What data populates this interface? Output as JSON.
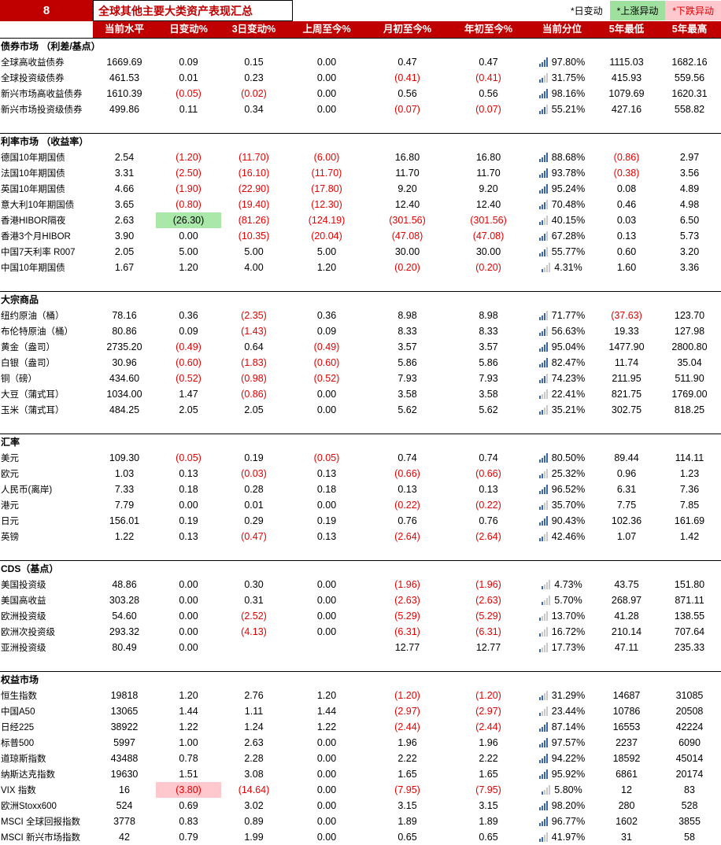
{
  "page": {
    "index_number": "8",
    "title": "全球其他主要大类资产表现汇总",
    "legend": [
      {
        "label": "*日变动",
        "style": "plain"
      },
      {
        "label": "*上涨异动",
        "style": "up"
      },
      {
        "label": "*下跌异动",
        "style": "down"
      }
    ]
  },
  "colors": {
    "header_bg": "#C00000",
    "negative_text": "#E60000",
    "up_highlight_bg": "#A9E8A9",
    "down_highlight_bg": "#FFC7CE",
    "percentile_bar_filled": "#3A66A7",
    "percentile_bar_empty": "#C9C9C9"
  },
  "icons": {
    "percentile_icon": "mini-bar-chart"
  },
  "table": {
    "columns": [
      "当前水平",
      "日变动%",
      "3日变动%",
      "上周至今%",
      "月初至今%",
      "年初至今%",
      "当前分位",
      "5年最低",
      "5年最高"
    ],
    "sections": [
      {
        "name": "债券市场 （利差/基点）",
        "rows": [
          {
            "label": "全球高收益债券",
            "cells": [
              "1669.69",
              "0.09",
              "0.15",
              "0.00",
              "0.47",
              "0.47",
              "97.80%",
              "1115.03",
              "1682.16"
            ]
          },
          {
            "label": "全球投资级债券",
            "cells": [
              "461.53",
              "0.01",
              "0.23",
              "0.00",
              "(0.41)",
              "(0.41)",
              "31.75%",
              "415.93",
              "559.56"
            ]
          },
          {
            "label": "新兴市场高收益债券",
            "cells": [
              "1610.39",
              "(0.05)",
              "(0.02)",
              "0.00",
              "0.56",
              "0.56",
              "98.16%",
              "1079.69",
              "1620.31"
            ]
          },
          {
            "label": "新兴市场投资级债券",
            "cells": [
              "499.86",
              "0.11",
              "0.34",
              "0.00",
              "(0.07)",
              "(0.07)",
              "55.21%",
              "427.16",
              "558.82"
            ]
          }
        ]
      },
      {
        "name": "利率市场 （收益率）",
        "rows": [
          {
            "label": "德国10年期国债",
            "cells": [
              "2.54",
              "(1.20)",
              "(11.70)",
              "(6.00)",
              "16.80",
              "16.80",
              "88.68%",
              "(0.86)",
              "2.97"
            ]
          },
          {
            "label": "法国10年期国债",
            "cells": [
              "3.31",
              "(2.50)",
              "(16.10)",
              "(11.70)",
              "11.70",
              "11.70",
              "93.78%",
              "(0.38)",
              "3.56"
            ]
          },
          {
            "label": "英国10年期国债",
            "cells": [
              "4.66",
              "(1.90)",
              "(22.90)",
              "(17.80)",
              "9.20",
              "9.20",
              "95.24%",
              "0.08",
              "4.89"
            ]
          },
          {
            "label": "意大利10年期国债",
            "cells": [
              "3.65",
              "(0.80)",
              "(19.40)",
              "(12.30)",
              "12.40",
              "12.40",
              "70.48%",
              "0.46",
              "4.98"
            ]
          },
          {
            "label": "香港HIBOR隔夜",
            "cells": [
              "2.63",
              "(26.30)",
              "(81.26)",
              "(124.19)",
              "(301.56)",
              "(301.56)",
              "40.15%",
              "0.03",
              "6.50"
            ],
            "hl": {
              "1": "up"
            }
          },
          {
            "label": "香港3个月HIBOR",
            "cells": [
              "3.90",
              "0.00",
              "(10.35)",
              "(20.04)",
              "(47.08)",
              "(47.08)",
              "67.28%",
              "0.13",
              "5.73"
            ]
          },
          {
            "label": "中国7天利率 R007",
            "cells": [
              "2.05",
              "5.00",
              "5.00",
              "5.00",
              "30.00",
              "30.00",
              "55.77%",
              "0.60",
              "3.20"
            ]
          },
          {
            "label": "中国10年期国债",
            "cells": [
              "1.67",
              "1.20",
              "4.00",
              "1.20",
              "(0.20)",
              "(0.20)",
              "4.31%",
              "1.60",
              "3.36"
            ]
          }
        ]
      },
      {
        "name": "大宗商品",
        "rows": [
          {
            "label": "纽约原油（桶）",
            "cells": [
              "78.16",
              "0.36",
              "(2.35)",
              "0.36",
              "8.98",
              "8.98",
              "71.77%",
              "(37.63)",
              "123.70"
            ]
          },
          {
            "label": "布伦特原油（桶）",
            "cells": [
              "80.86",
              "0.09",
              "(1.43)",
              "0.09",
              "8.33",
              "8.33",
              "56.63%",
              "19.33",
              "127.98"
            ]
          },
          {
            "label": "黄金（盎司）",
            "cells": [
              "2735.20",
              "(0.49)",
              "0.64",
              "(0.49)",
              "3.57",
              "3.57",
              "95.04%",
              "1477.90",
              "2800.80"
            ]
          },
          {
            "label": "白银（盎司）",
            "cells": [
              "30.96",
              "(0.60)",
              "(1.83)",
              "(0.60)",
              "5.86",
              "5.86",
              "82.47%",
              "11.74",
              "35.04"
            ]
          },
          {
            "label": "铜（磅）",
            "cells": [
              "434.60",
              "(0.52)",
              "(0.98)",
              "(0.52)",
              "7.93",
              "7.93",
              "74.23%",
              "211.95",
              "511.90"
            ]
          },
          {
            "label": "大豆（蒲式耳）",
            "cells": [
              "1034.00",
              "1.47",
              "(0.86)",
              "0.00",
              "3.58",
              "3.58",
              "22.41%",
              "821.75",
              "1769.00"
            ]
          },
          {
            "label": "玉米（蒲式耳）",
            "cells": [
              "484.25",
              "2.05",
              "2.05",
              "0.00",
              "5.62",
              "5.62",
              "35.21%",
              "302.75",
              "818.25"
            ]
          }
        ]
      },
      {
        "name": "汇率",
        "rows": [
          {
            "label": "美元",
            "cells": [
              "109.30",
              "(0.05)",
              "0.19",
              "(0.05)",
              "0.74",
              "0.74",
              "80.50%",
              "89.44",
              "114.11"
            ]
          },
          {
            "label": "欧元",
            "cells": [
              "1.03",
              "0.13",
              "(0.03)",
              "0.13",
              "(0.66)",
              "(0.66)",
              "25.32%",
              "0.96",
              "1.23"
            ]
          },
          {
            "label": "人民币(离岸)",
            "cells": [
              "7.33",
              "0.18",
              "0.28",
              "0.18",
              "0.13",
              "0.13",
              "96.52%",
              "6.31",
              "7.36"
            ]
          },
          {
            "label": "港元",
            "cells": [
              "7.79",
              "0.00",
              "0.01",
              "0.00",
              "(0.22)",
              "(0.22)",
              "35.70%",
              "7.75",
              "7.85"
            ]
          },
          {
            "label": "日元",
            "cells": [
              "156.01",
              "0.19",
              "0.29",
              "0.19",
              "0.76",
              "0.76",
              "90.43%",
              "102.36",
              "161.69"
            ]
          },
          {
            "label": "英镑",
            "cells": [
              "1.22",
              "0.13",
              "(0.47)",
              "0.13",
              "(2.64)",
              "(2.64)",
              "42.46%",
              "1.07",
              "1.42"
            ]
          }
        ]
      },
      {
        "name": "CDS（基点）",
        "rows": [
          {
            "label": "美国投资级",
            "cells": [
              "48.86",
              "0.00",
              "0.30",
              "0.00",
              "(1.96)",
              "(1.96)",
              "4.73%",
              "43.75",
              "151.80"
            ]
          },
          {
            "label": "美国高收益",
            "cells": [
              "303.28",
              "0.00",
              "0.31",
              "0.00",
              "(2.63)",
              "(2.63)",
              "5.70%",
              "268.97",
              "871.11"
            ]
          },
          {
            "label": "欧洲投资级",
            "cells": [
              "54.60",
              "0.00",
              "(2.52)",
              "0.00",
              "(5.29)",
              "(5.29)",
              "13.70%",
              "41.28",
              "138.55"
            ]
          },
          {
            "label": "欧洲次投资级",
            "cells": [
              "293.32",
              "0.00",
              "(4.13)",
              "0.00",
              "(6.31)",
              "(6.31)",
              "16.72%",
              "210.14",
              "707.64"
            ]
          },
          {
            "label": "亚洲投资级",
            "cells": [
              "80.49",
              "0.00",
              "",
              "",
              "12.77",
              "12.77",
              "17.73%",
              "47.11",
              "235.33"
            ]
          }
        ]
      },
      {
        "name": "权益市场",
        "rows": [
          {
            "label": "恒生指数",
            "cells": [
              "19818",
              "1.20",
              "2.76",
              "1.20",
              "(1.20)",
              "(1.20)",
              "31.29%",
              "14687",
              "31085"
            ]
          },
          {
            "label": "中国A50",
            "cells": [
              "13065",
              "1.44",
              "1.11",
              "1.44",
              "(2.97)",
              "(2.97)",
              "23.44%",
              "10786",
              "20508"
            ]
          },
          {
            "label": "日经225",
            "cells": [
              "38922",
              "1.22",
              "1.24",
              "1.22",
              "(2.44)",
              "(2.44)",
              "87.14%",
              "16553",
              "42224"
            ]
          },
          {
            "label": "标普500",
            "cells": [
              "5997",
              "1.00",
              "2.63",
              "0.00",
              "1.96",
              "1.96",
              "97.57%",
              "2237",
              "6090"
            ]
          },
          {
            "label": "道琼斯指数",
            "cells": [
              "43488",
              "0.78",
              "2.28",
              "0.00",
              "2.22",
              "2.22",
              "94.22%",
              "18592",
              "45014"
            ]
          },
          {
            "label": "纳斯达克指数",
            "cells": [
              "19630",
              "1.51",
              "3.08",
              "0.00",
              "1.65",
              "1.65",
              "95.92%",
              "6861",
              "20174"
            ]
          },
          {
            "label": "VIX 指数",
            "cells": [
              "16",
              "(3.80)",
              "(14.64)",
              "0.00",
              "(7.95)",
              "(7.95)",
              "5.80%",
              "12",
              "83"
            ],
            "hl": {
              "1": "down"
            }
          },
          {
            "label": "欧洲Stoxx600",
            "cells": [
              "524",
              "0.69",
              "3.02",
              "0.00",
              "3.15",
              "3.15",
              "98.20%",
              "280",
              "528"
            ]
          },
          {
            "label": "MSCI 全球回报指数",
            "cells": [
              "3778",
              "0.83",
              "0.89",
              "0.00",
              "1.89",
              "1.89",
              "96.77%",
              "1602",
              "3855"
            ]
          },
          {
            "label": "MSCI 新兴市场指数",
            "cells": [
              "42",
              "0.79",
              "1.99",
              "0.00",
              "0.65",
              "0.65",
              "41.97%",
              "31",
              "58"
            ]
          }
        ]
      }
    ]
  }
}
